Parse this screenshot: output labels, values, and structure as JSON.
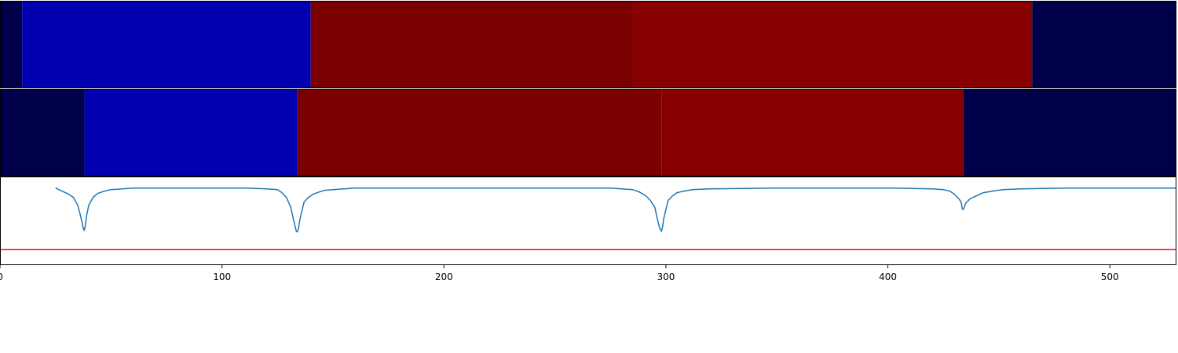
{
  "chart_data": [
    {
      "type": "heatmap",
      "name": "segmentation-row-1",
      "xlim": [
        0,
        530
      ],
      "segments": [
        {
          "start": 0,
          "end": 10,
          "color": "#00004a"
        },
        {
          "start": 10,
          "end": 140,
          "color": "#0000ae"
        },
        {
          "start": 140,
          "end": 285,
          "color": "#7a0000"
        },
        {
          "start": 285,
          "end": 465,
          "color": "#860000"
        },
        {
          "start": 465,
          "end": 530,
          "color": "#00004a"
        }
      ]
    },
    {
      "type": "heatmap",
      "name": "segmentation-row-2",
      "xlim": [
        0,
        530
      ],
      "segments": [
        {
          "start": 0,
          "end": 38,
          "color": "#00004a"
        },
        {
          "start": 38,
          "end": 134,
          "color": "#0000ae"
        },
        {
          "start": 134,
          "end": 298,
          "color": "#7a0000"
        },
        {
          "start": 298,
          "end": 434,
          "color": "#860000"
        },
        {
          "start": 434,
          "end": 530,
          "color": "#00004a"
        }
      ]
    },
    {
      "type": "line",
      "xlim": [
        0,
        530
      ],
      "ylim": [
        -1.0,
        0.15
      ],
      "x_ticks": [
        0,
        100,
        200,
        300,
        400,
        500
      ],
      "series": [
        {
          "color": "#1f77b4",
          "x": [
            25,
            28,
            31,
            33,
            35,
            36,
            37,
            37.5,
            38,
            38.5,
            39,
            40,
            42,
            44,
            47,
            50,
            55,
            60,
            80,
            100,
            110,
            120,
            125,
            127,
            129,
            131,
            132,
            133,
            133.5,
            134,
            134.5,
            135,
            136,
            137,
            139,
            141,
            143,
            146,
            150,
            160,
            200,
            250,
            275,
            285,
            288,
            291,
            293,
            295,
            296,
            297,
            297.5,
            298,
            298.5,
            299,
            300,
            301,
            303,
            305,
            308,
            312,
            320,
            350,
            400,
            420,
            425,
            428,
            430,
            432,
            433,
            433.5,
            434,
            435,
            437,
            440,
            443,
            447,
            452,
            460,
            480,
            500,
            530
          ],
          "y": [
            0.0,
            -0.04,
            -0.08,
            -0.12,
            -0.22,
            -0.33,
            -0.45,
            -0.52,
            -0.55,
            -0.48,
            -0.36,
            -0.22,
            -0.12,
            -0.07,
            -0.04,
            -0.02,
            -0.01,
            0.0,
            0.0,
            0.0,
            0.0,
            -0.01,
            -0.02,
            -0.06,
            -0.12,
            -0.25,
            -0.38,
            -0.5,
            -0.56,
            -0.57,
            -0.52,
            -0.42,
            -0.3,
            -0.18,
            -0.12,
            -0.08,
            -0.06,
            -0.03,
            -0.02,
            0.0,
            0.0,
            0.0,
            0.0,
            -0.02,
            -0.05,
            -0.1,
            -0.16,
            -0.25,
            -0.38,
            -0.5,
            -0.54,
            -0.56,
            -0.5,
            -0.4,
            -0.28,
            -0.16,
            -0.1,
            -0.06,
            -0.04,
            -0.02,
            -0.01,
            0.0,
            0.0,
            -0.01,
            -0.02,
            -0.04,
            -0.08,
            -0.14,
            -0.18,
            -0.27,
            -0.28,
            -0.2,
            -0.14,
            -0.1,
            -0.06,
            -0.04,
            -0.02,
            -0.01,
            0.0,
            0.0,
            0.0
          ]
        },
        {
          "color": "#ff0000",
          "x": [
            0,
            530
          ],
          "y": [
            -0.8,
            -0.8
          ]
        }
      ]
    }
  ]
}
